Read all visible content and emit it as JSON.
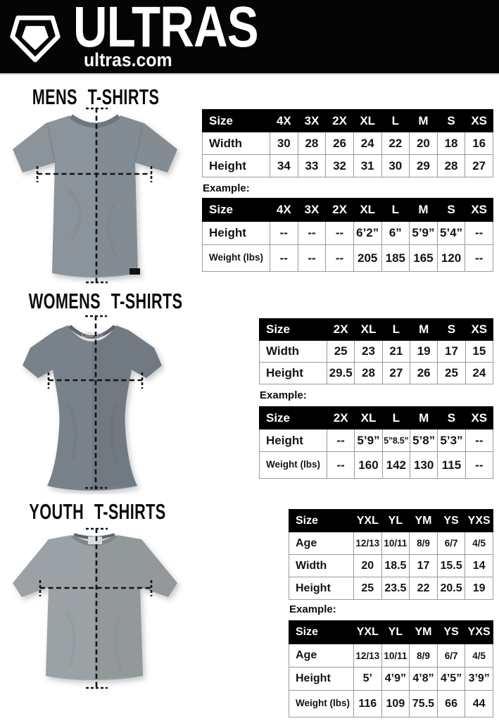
{
  "header": {
    "brand": "ULTRAS",
    "site": "ultras.com",
    "logo_icon": "pentagon-shield-icon",
    "bg_color": "#000000",
    "text_color": "#ffffff"
  },
  "colors": {
    "mens_shirt": "#8c949b",
    "womens_shirt": "#79818a",
    "youth_shirt": "#9ba1a4",
    "measure_line": "#141414",
    "table_header_bg": "#000000"
  },
  "sections": {
    "mens": {
      "heading": "MENS T-SHIRTS",
      "example_label": "Example:",
      "size_table": {
        "header": [
          "Size",
          "4X",
          "3X",
          "2X",
          "XL",
          "L",
          "M",
          "S",
          "XS"
        ],
        "rows": [
          {
            "label": "Width",
            "values": [
              "30",
              "28",
              "26",
              "24",
              "22",
              "20",
              "18",
              "16"
            ]
          },
          {
            "label": "Height",
            "values": [
              "34",
              "33",
              "32",
              "31",
              "30",
              "29",
              "28",
              "27"
            ]
          }
        ]
      },
      "example_table": {
        "header": [
          "Size",
          "4X",
          "3X",
          "2X",
          "XL",
          "L",
          "M",
          "S",
          "XS"
        ],
        "rows": [
          {
            "label": "Height",
            "values": [
              "--",
              "--",
              "--",
              "6’2”",
              "6”",
              "5’9”",
              "5’4”",
              "--"
            ]
          },
          {
            "label": "Weight (lbs)",
            "values": [
              "--",
              "--",
              "--",
              "205",
              "185",
              "165",
              "120",
              "--"
            ]
          }
        ]
      }
    },
    "womens": {
      "heading": "WOMENS T-SHIRTS",
      "example_label": "Example:",
      "shirt_print": "Ultras",
      "size_table": {
        "header": [
          "Size",
          "2X",
          "XL",
          "L",
          "M",
          "S",
          "XS"
        ],
        "rows": [
          {
            "label": "Width",
            "values": [
              "25",
              "23",
              "21",
              "19",
              "17",
              "15"
            ]
          },
          {
            "label": "Height",
            "values": [
              "29.5",
              "28",
              "27",
              "26",
              "25",
              "24"
            ]
          }
        ]
      },
      "example_table": {
        "header": [
          "Size",
          "2X",
          "XL",
          "L",
          "M",
          "S",
          "XS"
        ],
        "rows": [
          {
            "label": "Height",
            "values": [
              "--",
              "5’9”",
              "5”8.5”",
              "5’8”",
              "5’3”",
              "--"
            ]
          },
          {
            "label": "Weight (lbs)",
            "values": [
              "--",
              "160",
              "142",
              "130",
              "115",
              "--"
            ]
          }
        ]
      }
    },
    "youth": {
      "heading": "YOUTH T-SHIRTS",
      "example_label": "Example:",
      "size_table": {
        "header": [
          "Size",
          "YXL",
          "YL",
          "YM",
          "YS",
          "YXS"
        ],
        "rows": [
          {
            "label": "Age",
            "values": [
              "12/13",
              "10/11",
              "8/9",
              "6/7",
              "4/5"
            ]
          },
          {
            "label": "Width",
            "values": [
              "20",
              "18.5",
              "17",
              "15.5",
              "14"
            ]
          },
          {
            "label": "Height",
            "values": [
              "25",
              "23.5",
              "22",
              "20.5",
              "19"
            ]
          }
        ]
      },
      "example_table": {
        "header": [
          "Size",
          "YXL",
          "YL",
          "YM",
          "YS",
          "YXS"
        ],
        "rows": [
          {
            "label": "Age",
            "values": [
              "12/13",
              "10/11",
              "8/9",
              "6/7",
              "4/5"
            ]
          },
          {
            "label": "Height",
            "values": [
              "5’",
              "4’9”",
              "4’8”",
              "4’5”",
              "3’9”"
            ]
          },
          {
            "label": "Weight (lbs)",
            "values": [
              "116",
              "109",
              "75.5",
              "66",
              "44"
            ]
          }
        ]
      }
    }
  }
}
